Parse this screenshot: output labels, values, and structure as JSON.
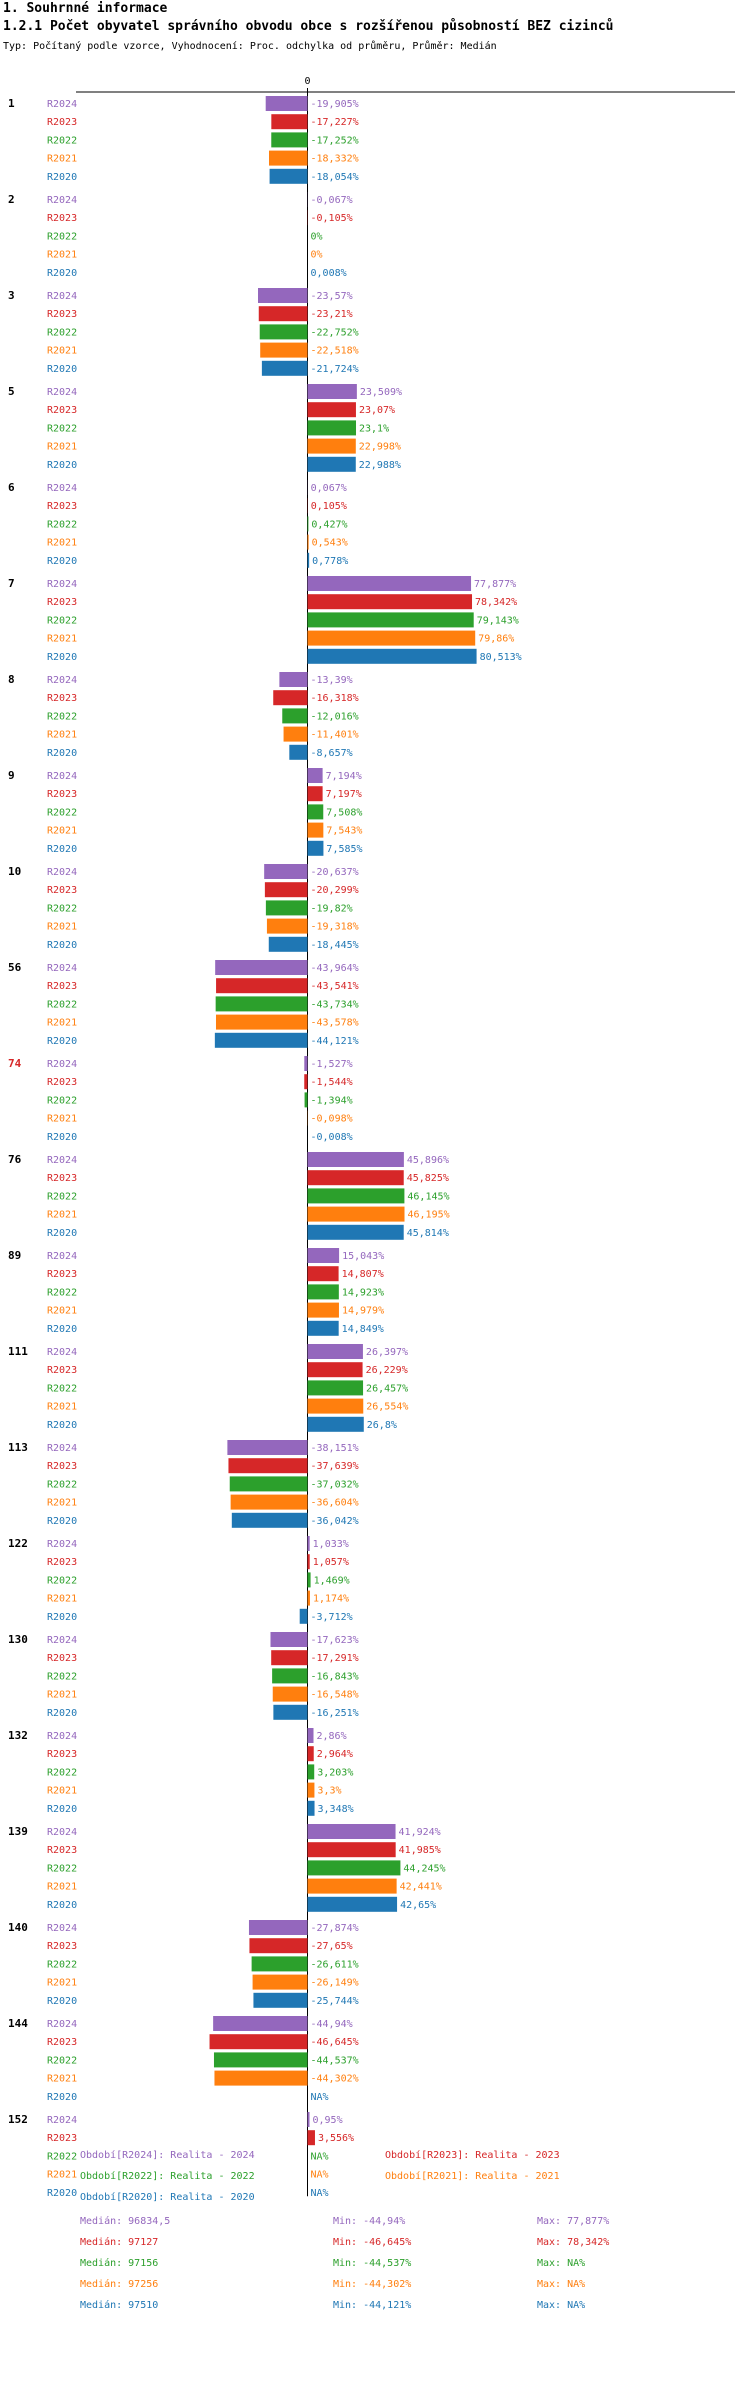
{
  "header": {
    "title": "1. Souhrnné informace",
    "subtitle": "1.2.1 Počet obyvatel správního obvodu obce s rozšířenou působností BEZ cizinců",
    "description": "Typ: Počítaný podle vzorce, Vyhodnocení: Proc. odchylka od průměru, Průměr: Medián"
  },
  "colors": {
    "R2024": "#9467bd",
    "R2023": "#d62728",
    "R2022": "#2ca02c",
    "R2021": "#ff7f0e",
    "R2020": "#1f77b4",
    "highlight_group": "#d62728"
  },
  "chart_data": {
    "type": "bar",
    "orientation": "horizontal",
    "zero_label": "0",
    "series_order": [
      "R2024",
      "R2023",
      "R2022",
      "R2021",
      "R2020"
    ],
    "groups": [
      {
        "id": "1",
        "values": [
          -19.905,
          -17.227,
          -17.252,
          -18.332,
          -18.054
        ],
        "labels": [
          "-19,905%",
          "-17,227%",
          "-17,252%",
          "-18,332%",
          "-18,054%"
        ]
      },
      {
        "id": "2",
        "values": [
          -0.067,
          -0.105,
          0,
          0,
          0.008
        ],
        "labels": [
          "-0,067%",
          "-0,105%",
          "0%",
          "0%",
          "0,008%"
        ]
      },
      {
        "id": "3",
        "values": [
          -23.57,
          -23.21,
          -22.752,
          -22.518,
          -21.724
        ],
        "labels": [
          "-23,57%",
          "-23,21%",
          "-22,752%",
          "-22,518%",
          "-21,724%"
        ]
      },
      {
        "id": "5",
        "values": [
          23.509,
          23.07,
          23.1,
          22.998,
          22.988
        ],
        "labels": [
          "23,509%",
          "23,07%",
          "23,1%",
          "22,998%",
          "22,988%"
        ]
      },
      {
        "id": "6",
        "values": [
          0.067,
          0.105,
          0.427,
          0.543,
          0.778
        ],
        "labels": [
          "0,067%",
          "0,105%",
          "0,427%",
          "0,543%",
          "0,778%"
        ]
      },
      {
        "id": "7",
        "values": [
          77.877,
          78.342,
          79.143,
          79.86,
          80.513
        ],
        "labels": [
          "77,877%",
          "78,342%",
          "79,143%",
          "79,86%",
          "80,513%"
        ]
      },
      {
        "id": "8",
        "values": [
          -13.39,
          -16.318,
          -12.016,
          -11.401,
          -8.657
        ],
        "labels": [
          "-13,39%",
          "-16,318%",
          "-12,016%",
          "-11,401%",
          "-8,657%"
        ]
      },
      {
        "id": "9",
        "values": [
          7.194,
          7.197,
          7.508,
          7.543,
          7.585
        ],
        "labels": [
          "7,194%",
          "7,197%",
          "7,508%",
          "7,543%",
          "7,585%"
        ]
      },
      {
        "id": "10",
        "values": [
          -20.637,
          -20.299,
          -19.82,
          -19.318,
          -18.445
        ],
        "labels": [
          "-20,637%",
          "-20,299%",
          "-19,82%",
          "-19,318%",
          "-18,445%"
        ]
      },
      {
        "id": "56",
        "values": [
          -43.964,
          -43.541,
          -43.734,
          -43.578,
          -44.121
        ],
        "labels": [
          "-43,964%",
          "-43,541%",
          "-43,734%",
          "-43,578%",
          "-44,121%"
        ]
      },
      {
        "id": "74",
        "highlight": true,
        "values": [
          -1.527,
          -1.544,
          -1.394,
          -0.098,
          -0.008
        ],
        "labels": [
          "-1,527%",
          "-1,544%",
          "-1,394%",
          "-0,098%",
          "-0,008%"
        ]
      },
      {
        "id": "76",
        "values": [
          45.896,
          45.825,
          46.145,
          46.195,
          45.814
        ],
        "labels": [
          "45,896%",
          "45,825%",
          "46,145%",
          "46,195%",
          "45,814%"
        ]
      },
      {
        "id": "89",
        "values": [
          15.043,
          14.807,
          14.923,
          14.979,
          14.849
        ],
        "labels": [
          "15,043%",
          "14,807%",
          "14,923%",
          "14,979%",
          "14,849%"
        ]
      },
      {
        "id": "111",
        "values": [
          26.397,
          26.229,
          26.457,
          26.554,
          26.8
        ],
        "labels": [
          "26,397%",
          "26,229%",
          "26,457%",
          "26,554%",
          "26,8%"
        ]
      },
      {
        "id": "113",
        "values": [
          -38.151,
          -37.639,
          -37.032,
          -36.604,
          -36.042
        ],
        "labels": [
          "-38,151%",
          "-37,639%",
          "-37,032%",
          "-36,604%",
          "-36,042%"
        ]
      },
      {
        "id": "122",
        "values": [
          1.033,
          1.057,
          1.469,
          1.174,
          -3.712
        ],
        "labels": [
          "1,033%",
          "1,057%",
          "1,469%",
          "1,174%",
          "-3,712%"
        ]
      },
      {
        "id": "130",
        "values": [
          -17.623,
          -17.291,
          -16.843,
          -16.548,
          -16.251
        ],
        "labels": [
          "-17,623%",
          "-17,291%",
          "-16,843%",
          "-16,548%",
          "-16,251%"
        ]
      },
      {
        "id": "132",
        "values": [
          2.86,
          2.964,
          3.203,
          3.3,
          3.348
        ],
        "labels": [
          "2,86%",
          "2,964%",
          "3,203%",
          "3,3%",
          "3,348%"
        ]
      },
      {
        "id": "139",
        "values": [
          41.924,
          41.985,
          44.245,
          42.441,
          42.65
        ],
        "labels": [
          "41,924%",
          "41,985%",
          "44,245%",
          "42,441%",
          "42,65%"
        ]
      },
      {
        "id": "140",
        "values": [
          -27.874,
          -27.65,
          -26.611,
          -26.149,
          -25.744
        ],
        "labels": [
          "-27,874%",
          "-27,65%",
          "-26,611%",
          "-26,149%",
          "-25,744%"
        ]
      },
      {
        "id": "144",
        "values": [
          -44.94,
          -46.645,
          -44.537,
          -44.302,
          null
        ],
        "labels": [
          "-44,94%",
          "-46,645%",
          "-44,537%",
          "-44,302%",
          "NA%"
        ]
      },
      {
        "id": "152",
        "values": [
          0.95,
          3.556,
          null,
          null,
          null
        ],
        "labels": [
          "0,95%",
          "3,556%",
          "NA%",
          "NA%",
          "NA%"
        ]
      }
    ]
  },
  "legend": {
    "periods": [
      {
        "key": "R2024",
        "text": "Období[R2024]: Realita - 2024"
      },
      {
        "key": "R2023",
        "text": "Období[R2023]: Realita - 2023"
      },
      {
        "key": "R2022",
        "text": "Období[R2022]: Realita - 2022"
      },
      {
        "key": "R2021",
        "text": "Období[R2021]: Realita - 2021"
      },
      {
        "key": "R2020",
        "text": "Období[R2020]: Realita - 2020"
      }
    ],
    "stats": [
      {
        "key": "R2024",
        "median": "Medián: 96834,5",
        "min": "Min: -44,94%",
        "max": "Max: 77,877%"
      },
      {
        "key": "R2023",
        "median": "Medián: 97127",
        "min": "Min: -46,645%",
        "max": "Max: 78,342%"
      },
      {
        "key": "R2022",
        "median": "Medián: 97156",
        "min": "Min: -44,537%",
        "max": "Max: NA%"
      },
      {
        "key": "R2021",
        "median": "Medián: 97256",
        "min": "Min: -44,302%",
        "max": "Max: NA%"
      },
      {
        "key": "R2020",
        "median": "Medián: 97510",
        "min": "Min: -44,121%",
        "max": "Max: NA%"
      }
    ]
  }
}
